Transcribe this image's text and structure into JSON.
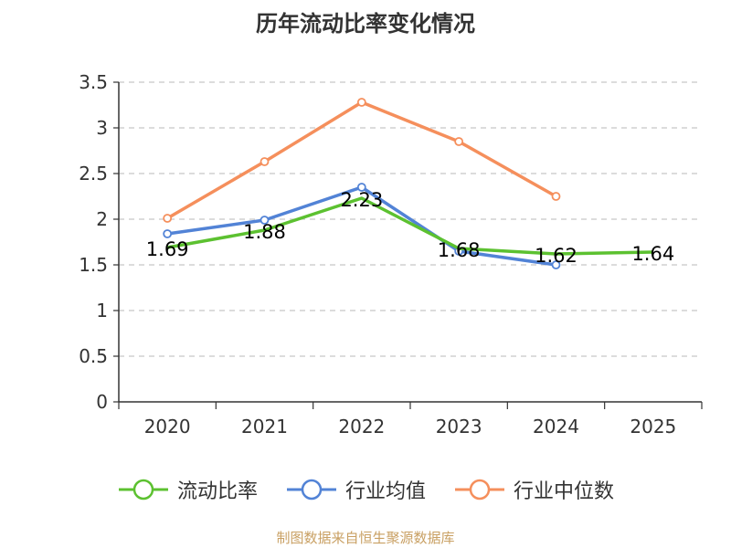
{
  "chart_data": {
    "type": "line",
    "title": "历年流动比率变化情况",
    "categories": [
      "2020",
      "2021",
      "2022",
      "2023",
      "2024",
      "2025"
    ],
    "ylim": [
      0,
      3.5
    ],
    "yticks": [
      "0",
      "0.5",
      "1",
      "1.5",
      "2",
      "2.5",
      "3",
      "3.5"
    ],
    "grid": true,
    "legend_position": "bottom",
    "series": [
      {
        "name": "流动比率",
        "color": "#5cc130",
        "values": [
          1.69,
          1.88,
          2.23,
          1.68,
          1.62,
          1.64
        ],
        "labels": [
          "1.69",
          "1.88",
          "2.23",
          "1.68",
          "1.62",
          "1.64"
        ],
        "show_markers": false
      },
      {
        "name": "行业均值",
        "color": "#5283d6",
        "values": [
          1.84,
          1.99,
          2.35,
          1.65,
          1.5,
          null
        ],
        "show_markers": true
      },
      {
        "name": "行业中位数",
        "color": "#f58f5c",
        "values": [
          2.01,
          2.63,
          3.28,
          2.85,
          2.25,
          null
        ],
        "show_markers": true
      }
    ]
  },
  "source_note": "制图数据来自恒生聚源数据库"
}
